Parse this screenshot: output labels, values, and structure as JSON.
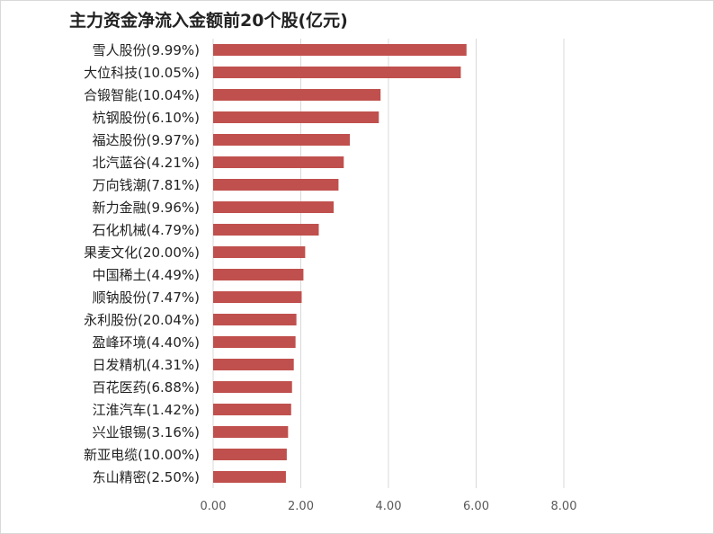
{
  "chart_data": {
    "type": "bar",
    "orientation": "horizontal",
    "title": "主力资金净流入金额前20个股(亿元)",
    "categories": [
      "雪人股份(9.99%)",
      "大位科技(10.05%)",
      "合锻智能(10.04%)",
      "杭钢股份(6.10%)",
      "福达股份(9.97%)",
      "北汽蓝谷(4.21%)",
      "万向钱潮(7.81%)",
      "新力金融(9.96%)",
      "石化机械(4.79%)",
      "果麦文化(20.00%)",
      "中国稀土(4.49%)",
      "顺钠股份(7.47%)",
      "永利股份(20.04%)",
      "盈峰环境(4.40%)",
      "日发精机(4.31%)",
      "百花医药(6.88%)",
      "江淮汽车(1.42%)",
      "兴业银锡(3.16%)",
      "新亚电缆(10.00%)",
      "东山精密(2.50%)"
    ],
    "values": [
      5.78,
      5.65,
      3.82,
      3.78,
      3.12,
      2.98,
      2.86,
      2.75,
      2.41,
      2.1,
      2.06,
      2.02,
      1.9,
      1.88,
      1.84,
      1.8,
      1.78,
      1.71,
      1.68,
      1.66
    ],
    "xlim": [
      0,
      8
    ],
    "xticks": [
      "0.00",
      "2.00",
      "4.00",
      "6.00",
      "8.00"
    ],
    "tick_values": [
      0,
      2,
      4,
      6,
      8
    ],
    "grid": true,
    "bar_color": "#c0504d",
    "grid_color": "#d9d9d9"
  }
}
